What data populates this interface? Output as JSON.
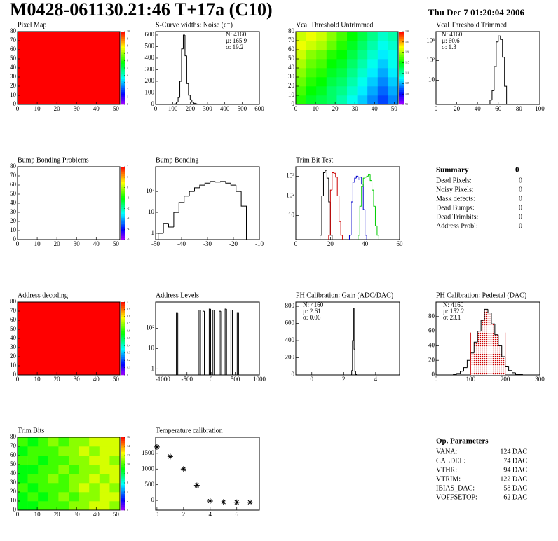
{
  "header": {
    "title": "M0428-061130.21:46 T+17a (C10)",
    "date": "Thu Dec  7 01:20:04 2006"
  },
  "chart_data": [
    {
      "type": "heatmap",
      "title": "Pixel Map",
      "xlim": [
        0,
        52
      ],
      "ylim": [
        0,
        80
      ],
      "xticks": [
        0,
        10,
        20,
        30,
        40,
        50
      ],
      "yticks": [
        0,
        10,
        20,
        30,
        40,
        50,
        60,
        70,
        80
      ],
      "zlim": [
        0,
        10
      ],
      "zticks": [
        0,
        1,
        2,
        3,
        4,
        5,
        6,
        7,
        8,
        9,
        10
      ],
      "values": [
        [
          10
        ]
      ]
    },
    {
      "type": "histogram",
      "title": "S-Curve widths: Noise (e⁻)",
      "xlim": [
        0,
        600
      ],
      "ylim": [
        0,
        630
      ],
      "xticks": [
        0,
        100,
        200,
        300,
        400,
        500,
        600
      ],
      "yticks": [
        0,
        100,
        200,
        300,
        400,
        500,
        600
      ],
      "color": "#000000",
      "bins": [
        100,
        110,
        120,
        130,
        140,
        150,
        160,
        170,
        180,
        190,
        200,
        210,
        220,
        230,
        240,
        250,
        260,
        270,
        280,
        290,
        300
      ],
      "values": [
        2,
        5,
        20,
        60,
        200,
        480,
        600,
        420,
        180,
        80,
        40,
        20,
        10,
        5,
        3,
        2,
        1,
        1,
        0,
        0
      ],
      "stats": [
        "N: 4160",
        "µ: 165.9",
        "σ: 19.2"
      ]
    },
    {
      "type": "heatmap",
      "title": "Vcal Threshold Untrimmed",
      "xlim": [
        0,
        52
      ],
      "ylim": [
        0,
        80
      ],
      "xticks": [
        0,
        10,
        20,
        30,
        40,
        50
      ],
      "yticks": [
        0,
        10,
        20,
        30,
        40,
        50,
        60,
        70,
        80
      ],
      "zlim": [
        95,
        130
      ],
      "zticks": [
        95,
        100,
        105,
        110,
        115,
        120,
        125,
        130
      ],
      "values": [
        [
          116,
          114,
          113,
          112,
          110,
          108,
          106,
          104,
          102,
          104
        ],
        [
          117,
          115,
          114,
          112,
          111,
          109,
          107,
          105,
          103,
          105
        ],
        [
          118,
          116,
          115,
          113,
          112,
          110,
          108,
          106,
          104,
          106
        ],
        [
          119,
          117,
          116,
          114,
          113,
          111,
          109,
          107,
          105,
          107
        ],
        [
          120,
          118,
          117,
          115,
          114,
          112,
          110,
          108,
          106,
          108
        ],
        [
          121,
          119,
          118,
          116,
          115,
          113,
          111,
          109,
          107,
          108
        ],
        [
          122,
          121,
          120,
          118,
          116,
          114,
          112,
          110,
          108,
          109
        ],
        [
          121,
          122,
          121,
          119,
          117,
          115,
          113,
          111,
          109,
          110
        ]
      ]
    },
    {
      "type": "histogram",
      "title": "Vcal Threshold Trimmed",
      "log_y": true,
      "xlim": [
        0,
        100
      ],
      "ylim": [
        0.6,
        3000
      ],
      "xticks": [
        0,
        20,
        40,
        60,
        80,
        100
      ],
      "yticks": [
        10,
        {
          "value": 100,
          "label": "10²"
        },
        {
          "value": 1000,
          "label": "10³"
        }
      ],
      "color": "#000000",
      "bins": [
        52,
        54,
        56,
        58,
        60,
        62,
        64,
        66,
        68
      ],
      "values": [
        1,
        3,
        50,
        900,
        1800,
        1200,
        150,
        5
      ],
      "stats": [
        "N: 4160",
        "µ: 60.6",
        "σ:  1.3"
      ]
    },
    {
      "type": "heatmap",
      "title": "Bump Bonding Problems",
      "xlim": [
        0,
        52
      ],
      "ylim": [
        0,
        80
      ],
      "xticks": [
        0,
        10,
        20,
        30,
        40,
        50
      ],
      "yticks": [
        0,
        10,
        20,
        30,
        40,
        50,
        60,
        70,
        80
      ],
      "zlim": [
        -5,
        2
      ],
      "zticks": [
        -5,
        -4,
        -3,
        -2,
        -1,
        0,
        1,
        2
      ],
      "values": [
        [
          null
        ]
      ]
    },
    {
      "type": "histogram",
      "title": "Bump Bonding",
      "log_y": true,
      "xlim": [
        -50,
        -10
      ],
      "ylim": [
        0.5,
        1500
      ],
      "xticks": [
        -50,
        -40,
        -30,
        -20,
        -10
      ],
      "yticks": [
        1,
        10,
        {
          "value": 100,
          "label": "10²"
        }
      ],
      "color": "#000000",
      "bins": [
        -49,
        -47,
        -45,
        -43,
        -41,
        -39,
        -37,
        -35,
        -33,
        -31,
        -29,
        -27,
        -25,
        -23,
        -21,
        -19,
        -17,
        -15
      ],
      "values": [
        1,
        3,
        2,
        10,
        30,
        60,
        100,
        150,
        200,
        250,
        300,
        280,
        300,
        250,
        200,
        100,
        20
      ]
    },
    {
      "type": "histogram",
      "title": "Trim Bit Test",
      "log_y": true,
      "xlim": [
        0,
        60
      ],
      "ylim": [
        0.6,
        3000
      ],
      "xticks": [
        0,
        20,
        40,
        60
      ],
      "yticks": [
        10,
        {
          "value": 100,
          "label": "10²"
        },
        {
          "value": 1000,
          "label": "10³"
        }
      ],
      "series": [
        {
          "color": "#000000",
          "bins": [
            14,
            15,
            16,
            17,
            18,
            19,
            20,
            21,
            22
          ],
          "values": [
            1,
            100,
            1500,
            2000,
            800,
            50,
            1,
            0
          ]
        },
        {
          "color": "#cc0000",
          "bins": [
            19,
            20,
            21,
            22,
            23,
            24,
            25,
            26,
            27
          ],
          "values": [
            1,
            200,
            1500,
            1400,
            900,
            100,
            5,
            1
          ]
        },
        {
          "color": "#0000cc",
          "bins": [
            31,
            32,
            33,
            34,
            35,
            36,
            37,
            38,
            39,
            40,
            41
          ],
          "values": [
            1,
            50,
            500,
            800,
            1000,
            700,
            900,
            400,
            20,
            1
          ]
        },
        {
          "color": "#00cc00",
          "bins": [
            36,
            37,
            38,
            39,
            40,
            41,
            42,
            43,
            44,
            45,
            46,
            47,
            48
          ],
          "values": [
            1,
            30,
            300,
            800,
            900,
            1000,
            1200,
            600,
            200,
            30,
            3,
            1
          ]
        }
      ]
    },
    {
      "type": "heatmap",
      "title": "Address decoding",
      "xlim": [
        0,
        52
      ],
      "ylim": [
        0,
        80
      ],
      "xticks": [
        0,
        10,
        20,
        30,
        40,
        50
      ],
      "yticks": [
        0,
        10,
        20,
        30,
        40,
        50,
        60,
        70,
        80
      ],
      "zlim": [
        0,
        1
      ],
      "zticks": [
        0,
        0.1,
        0.2,
        0.3,
        0.4,
        0.5,
        0.6,
        0.7,
        0.8,
        0.9,
        1
      ],
      "values": [
        [
          1
        ]
      ]
    },
    {
      "type": "histogram",
      "title": "Address Levels",
      "log_y": true,
      "xlim": [
        -1150,
        1000
      ],
      "ylim": [
        0.5,
        2000
      ],
      "xticks": [
        -1000,
        -500,
        0,
        500,
        1000
      ],
      "yticks": [
        1,
        10,
        {
          "value": 100,
          "label": "10²"
        }
      ],
      "color": "#000000",
      "bins": [
        -720,
        -690,
        -250,
        -220,
        -170,
        -140,
        -40,
        -10,
        30,
        60,
        170,
        200,
        290,
        320,
        410,
        440,
        540,
        570
      ],
      "values": [
        600,
        0,
        800,
        0,
        700,
        0,
        900,
        0,
        800,
        0,
        700,
        0,
        900,
        0,
        800,
        0,
        600
      ]
    },
    {
      "type": "histogram",
      "title": "PH Calibration: Gain (ADC/DAC)",
      "xlim": [
        -1,
        5.5
      ],
      "ylim": [
        0,
        850
      ],
      "xticks": [
        0,
        2,
        4
      ],
      "yticks": [
        0,
        200,
        400,
        600,
        800
      ],
      "color": "#000000",
      "bins": [
        2.45,
        2.5,
        2.55,
        2.6,
        2.65,
        2.7,
        2.75,
        2.8
      ],
      "values": [
        5,
        50,
        400,
        780,
        300,
        40,
        5
      ],
      "stats": [
        "N: 4160",
        "µ: 2.61",
        "σ: 0.06"
      ]
    },
    {
      "type": "histogram",
      "title": "PH Calibration: Pedestal (DAC)",
      "xlim": [
        0,
        300
      ],
      "ylim": [
        0,
        100
      ],
      "xticks": [
        0,
        100,
        200,
        300
      ],
      "yticks": [
        0,
        20,
        40,
        60,
        80
      ],
      "color": "#000000",
      "fit_color": "#cc0000",
      "fit_range": [
        100,
        200
      ],
      "bins": [
        50,
        60,
        70,
        80,
        90,
        100,
        110,
        120,
        130,
        140,
        150,
        160,
        170,
        180,
        190,
        200,
        210,
        220,
        230,
        240,
        250
      ],
      "values": [
        1,
        2,
        5,
        10,
        20,
        30,
        45,
        60,
        75,
        90,
        85,
        70,
        55,
        40,
        25,
        12,
        6,
        3,
        1,
        1
      ],
      "stats": [
        "N: 4160",
        "µ: 152.2",
        "σ: 23.1"
      ],
      "stats_colors": [
        "#000000",
        "#cc0000",
        "#cc0000"
      ]
    },
    {
      "type": "heatmap",
      "title": "Trim Bits",
      "xlim": [
        0,
        52
      ],
      "ylim": [
        0,
        80
      ],
      "xticks": [
        0,
        10,
        20,
        30,
        40,
        50
      ],
      "yticks": [
        0,
        10,
        20,
        30,
        40,
        50,
        60,
        70,
        80
      ],
      "zlim": [
        0,
        16
      ],
      "zticks": [
        0,
        2,
        4,
        6,
        8,
        10,
        12,
        14,
        16
      ],
      "values": [
        [
          9,
          9,
          10,
          10,
          10,
          11,
          11,
          12,
          12,
          11
        ],
        [
          9,
          10,
          9,
          10,
          11,
          10,
          11,
          11,
          12,
          12
        ],
        [
          10,
          9,
          10,
          10,
          10,
          11,
          12,
          11,
          12,
          11
        ],
        [
          9,
          10,
          10,
          11,
          10,
          11,
          11,
          12,
          11,
          12
        ],
        [
          9,
          9,
          10,
          10,
          11,
          10,
          11,
          11,
          12,
          12
        ],
        [
          10,
          10,
          9,
          10,
          10,
          11,
          11,
          12,
          12,
          11
        ],
        [
          9,
          10,
          10,
          10,
          11,
          11,
          12,
          11,
          12,
          12
        ],
        [
          10,
          9,
          10,
          11,
          10,
          11,
          11,
          12,
          12,
          12
        ]
      ]
    },
    {
      "type": "scatter",
      "title": "Temperature calibration",
      "xlim": [
        -0.1,
        7.7
      ],
      "ylim": [
        -310,
        2010
      ],
      "xticks": [
        0,
        2,
        4,
        6
      ],
      "yticks": [
        0,
        500,
        1000,
        1500
      ],
      "color": "#000000",
      "x": [
        0,
        1,
        2,
        3,
        4,
        5,
        6,
        7
      ],
      "values": [
        1700,
        1400,
        1000,
        480,
        -20,
        -50,
        -60,
        -60
      ]
    }
  ],
  "summary": {
    "title": "Summary",
    "total": 0,
    "rows": [
      [
        "Dead Pixels:",
        0
      ],
      [
        "Noisy Pixels:",
        0
      ],
      [
        "Mask defects:",
        0
      ],
      [
        "Dead Bumps:",
        0
      ],
      [
        "Dead Trimbits:",
        0
      ],
      [
        "Address Probl:",
        0
      ]
    ]
  },
  "op_parameters": {
    "title": "Op. Parameters",
    "rows": [
      [
        "VANA:",
        "124 DAC"
      ],
      [
        "CALDEL:",
        "74 DAC"
      ],
      [
        "VTHR:",
        "94 DAC"
      ],
      [
        "VTRIM:",
        "122 DAC"
      ],
      [
        "IBIAS_DAC:",
        "58 DAC"
      ],
      [
        "VOFFSETOP:",
        "62 DAC"
      ]
    ]
  }
}
